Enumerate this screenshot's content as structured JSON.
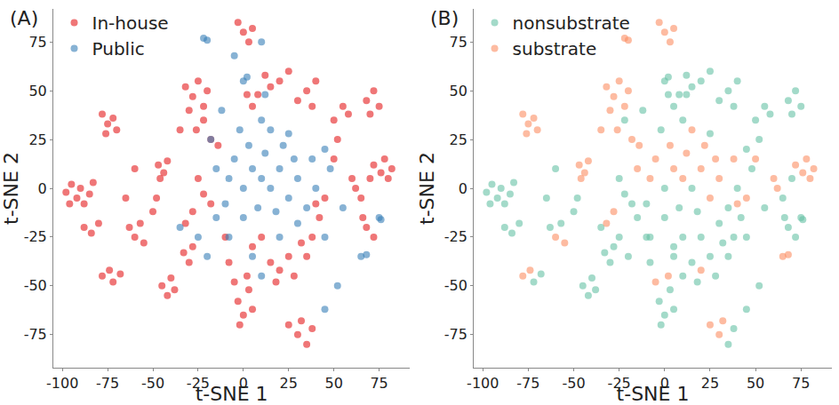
{
  "chart_data": [
    {
      "type": "scatter",
      "title": "(A)",
      "x_label": "t-SNE 1",
      "y_label": "t-SNE 2",
      "xlim": [
        -105,
        92
      ],
      "ylim": [
        -92,
        92
      ],
      "xticks": [
        -100,
        -75,
        -50,
        -25,
        0,
        25,
        50,
        75
      ],
      "yticks": [
        -75,
        -50,
        -25,
        0,
        25,
        50,
        75
      ],
      "grid": false,
      "legend": "upper left",
      "marker": "circle",
      "series": [
        {
          "name": "In-house",
          "color": "#e41a1c",
          "x": [
            -98,
            -95,
            -92,
            -90,
            -88,
            -85,
            -83,
            -96,
            -78,
            -75,
            -72,
            -70,
            -76,
            -88,
            -84,
            -80,
            -78,
            -74,
            -72,
            -68,
            -63,
            -60,
            -57,
            -55,
            -50,
            -48,
            -47,
            -44,
            -42,
            -46,
            -45,
            -42,
            -38,
            -40,
            -33,
            -30,
            -28,
            -32,
            -28,
            -32,
            -28,
            -25,
            -22,
            -30,
            -26,
            -20,
            -35,
            -18,
            -14,
            -22,
            -22,
            -18,
            -25,
            -3,
            0,
            3,
            -2,
            5,
            -5,
            2,
            -3,
            0,
            5,
            3,
            5,
            8,
            2,
            15,
            20,
            25,
            12,
            15,
            20,
            25,
            18,
            28,
            25,
            30,
            35,
            32,
            38,
            32,
            38,
            35,
            40,
            45,
            42,
            30,
            35,
            40,
            38,
            50,
            55,
            58,
            68,
            72,
            75,
            70,
            72,
            76,
            80,
            70,
            78,
            82,
            62,
            65,
            60,
            68,
            72,
            66,
            50,
            52,
            10,
            5,
            -10,
            -8,
            -60,
            -65
          ],
          "y": [
            -2,
            2,
            -5,
            0,
            -8,
            -3,
            3,
            -8,
            38,
            33,
            36,
            30,
            28,
            -20,
            -23,
            -18,
            -45,
            -42,
            -48,
            -44,
            -20,
            -25,
            -18,
            -28,
            -12,
            -5,
            12,
            8,
            14,
            5,
            -50,
            -55,
            -52,
            -46,
            -33,
            -38,
            -30,
            -18,
            -12,
            52,
            47,
            55,
            42,
            40,
            30,
            50,
            30,
            25,
            22,
            35,
            -3,
            -8,
            5,
            -58,
            -65,
            -52,
            -70,
            -62,
            -48,
            -45,
            85,
            80,
            82,
            75,
            42,
            48,
            48,
            52,
            55,
            60,
            58,
            -38,
            -42,
            -35,
            -48,
            -45,
            -70,
            -75,
            -80,
            -68,
            -72,
            -28,
            -25,
            -35,
            -8,
            -5,
            -15,
            45,
            50,
            55,
            42,
            35,
            42,
            38,
            45,
            50,
            42,
            38,
            12,
            8,
            5,
            5,
            15,
            10,
            0,
            -5,
            5,
            -20,
            -25,
            -15,
            15,
            25,
            -25,
            -30,
            -25,
            -38,
            10,
            -5
          ]
        },
        {
          "name": "Public",
          "color": "#377eb8",
          "x": [
            10,
            15,
            5,
            20,
            0,
            25,
            -5,
            12,
            30,
            8,
            18,
            -8,
            -10,
            3,
            22,
            28,
            35,
            15,
            -2,
            -15,
            -15,
            0,
            30,
            40,
            38,
            25,
            10,
            -18,
            -25,
            -8,
            20,
            45,
            5,
            -20,
            45,
            -12,
            10,
            -22,
            -20,
            0,
            2,
            12,
            75,
            76,
            65,
            68,
            45,
            10,
            -5,
            52,
            48,
            -35,
            55
          ],
          "y": [
            5,
            0,
            10,
            10,
            0,
            -5,
            15,
            18,
            5,
            -10,
            -12,
            5,
            -8,
            22,
            22,
            15,
            -10,
            30,
            30,
            10,
            -15,
            -15,
            -18,
            0,
            15,
            28,
            35,
            25,
            -25,
            -25,
            -25,
            -25,
            -35,
            -35,
            20,
            40,
            -45,
            77,
            76,
            55,
            57,
            48,
            -15,
            -16,
            -35,
            -34,
            -62,
            75,
            68,
            -50,
            10,
            -20,
            -10
          ]
        }
      ]
    },
    {
      "type": "scatter",
      "title": "(B)",
      "x_label": "t-SNE 1",
      "y_label": "t-SNE 2",
      "xlim": [
        -105,
        92
      ],
      "ylim": [
        -92,
        92
      ],
      "xticks": [
        -100,
        -75,
        -50,
        -25,
        0,
        25,
        50,
        75
      ],
      "yticks": [
        -75,
        -50,
        -25,
        0,
        25,
        50,
        75
      ],
      "grid": false,
      "legend": "upper left",
      "marker": "circle",
      "series": [
        {
          "name": "nonsubstrate",
          "color": "#66c2a5",
          "x": [
            -98,
            -95,
            -92,
            -90,
            -88,
            -85,
            -83,
            -96,
            -88,
            -84,
            -80,
            -72,
            -68,
            -63,
            -57,
            -50,
            -48,
            -45,
            -42,
            -38,
            -40,
            -33,
            -30,
            -28,
            -22,
            -22,
            -18,
            -25,
            -3,
            0,
            3,
            -2,
            5,
            5,
            8,
            2,
            15,
            20,
            25,
            12,
            15,
            25,
            18,
            28,
            35,
            38,
            32,
            38,
            35,
            42,
            30,
            35,
            40,
            38,
            50,
            55,
            58,
            68,
            72,
            75,
            70,
            70,
            65,
            68,
            72,
            66,
            52,
            10,
            5,
            -10,
            -8,
            -60,
            -65,
            15,
            0,
            8,
            18,
            -10,
            35,
            -2,
            -15,
            0,
            30,
            40,
            25,
            10,
            -25,
            -8,
            20,
            45,
            5,
            -20,
            45,
            -12,
            10,
            0,
            2,
            12,
            75,
            76,
            45,
            52,
            48,
            -35,
            55
          ],
          "y": [
            -2,
            2,
            -5,
            0,
            -8,
            -3,
            3,
            -8,
            -20,
            -23,
            -18,
            -48,
            -44,
            -20,
            -18,
            -12,
            -5,
            -50,
            -55,
            -52,
            -46,
            -33,
            -38,
            -30,
            35,
            -3,
            -8,
            5,
            -58,
            -65,
            -52,
            -70,
            -62,
            42,
            48,
            48,
            52,
            55,
            60,
            58,
            -38,
            -35,
            -48,
            -45,
            -80,
            -72,
            -28,
            -25,
            -35,
            -15,
            45,
            50,
            55,
            42,
            35,
            42,
            38,
            45,
            50,
            42,
            38,
            5,
            -5,
            -20,
            -25,
            -15,
            25,
            -25,
            -30,
            -25,
            -38,
            10,
            -5,
            0,
            0,
            -10,
            -12,
            -8,
            -10,
            30,
            -15,
            -15,
            -18,
            0,
            28,
            35,
            -25,
            -25,
            -25,
            -25,
            -35,
            -35,
            20,
            40,
            -45,
            55,
            57,
            48,
            -15,
            -16,
            -62,
            -50,
            10,
            -20,
            -10
          ]
        },
        {
          "name": "substrate",
          "color": "#fc8d62",
          "x": [
            -78,
            -75,
            -72,
            -70,
            -76,
            -47,
            -44,
            -42,
            -46,
            -32,
            -28,
            -25,
            -30,
            -26,
            -35,
            -22,
            -20,
            -3,
            0,
            5,
            3,
            72,
            76,
            80,
            78,
            82,
            25,
            32,
            30,
            -78,
            -74,
            2,
            -5,
            60,
            62,
            10,
            5,
            20,
            -5,
            25,
            22,
            -8,
            30,
            15,
            38,
            -22,
            -20,
            65,
            68,
            -60,
            -55,
            -14,
            -18,
            -28,
            -32,
            20,
            40,
            45,
            50,
            12,
            28,
            -15,
            3
          ],
          "y": [
            38,
            33,
            36,
            30,
            28,
            12,
            8,
            14,
            5,
            52,
            47,
            55,
            40,
            30,
            30,
            42,
            50,
            85,
            80,
            82,
            75,
            12,
            8,
            5,
            15,
            10,
            -70,
            -68,
            -75,
            -45,
            -42,
            -45,
            -48,
            5,
            0,
            5,
            10,
            10,
            15,
            -5,
            22,
            5,
            5,
            30,
            15,
            77,
            76,
            -35,
            -34,
            -25,
            -28,
            22,
            25,
            -12,
            -18,
            -42,
            -8,
            -5,
            15,
            18,
            15,
            10,
            22
          ]
        }
      ]
    }
  ]
}
